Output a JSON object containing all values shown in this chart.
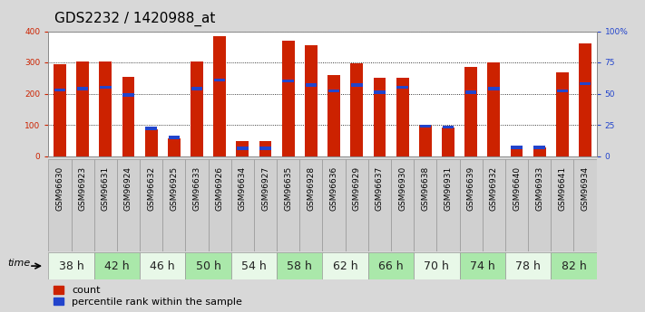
{
  "title": "GDS2232 / 1420988_at",
  "samples": [
    "GSM96630",
    "GSM96923",
    "GSM96631",
    "GSM96924",
    "GSM96632",
    "GSM96925",
    "GSM96633",
    "GSM96926",
    "GSM96634",
    "GSM96927",
    "GSM96635",
    "GSM96928",
    "GSM96636",
    "GSM96929",
    "GSM96637",
    "GSM96930",
    "GSM96638",
    "GSM96931",
    "GSM96639",
    "GSM96932",
    "GSM96640",
    "GSM96933",
    "GSM96641",
    "GSM96934"
  ],
  "count_values": [
    295,
    302,
    302,
    255,
    85,
    57,
    302,
    385,
    47,
    47,
    370,
    355,
    258,
    298,
    250,
    250,
    96,
    92,
    285,
    300,
    28,
    28,
    268,
    362
  ],
  "percentile_values": [
    53,
    54,
    55,
    49,
    22,
    15,
    54,
    61,
    6,
    6,
    60,
    57,
    52,
    57,
    51,
    55,
    24,
    23,
    51,
    54,
    7,
    7,
    52,
    58
  ],
  "time_groups": [
    {
      "label": "38 h",
      "start": 0,
      "end": 2
    },
    {
      "label": "42 h",
      "start": 2,
      "end": 4
    },
    {
      "label": "46 h",
      "start": 4,
      "end": 6
    },
    {
      "label": "50 h",
      "start": 6,
      "end": 8
    },
    {
      "label": "54 h",
      "start": 8,
      "end": 10
    },
    {
      "label": "58 h",
      "start": 10,
      "end": 12
    },
    {
      "label": "62 h",
      "start": 12,
      "end": 14
    },
    {
      "label": "66 h",
      "start": 14,
      "end": 16
    },
    {
      "label": "70 h",
      "start": 16,
      "end": 18
    },
    {
      "label": "74 h",
      "start": 18,
      "end": 20
    },
    {
      "label": "78 h",
      "start": 20,
      "end": 22
    },
    {
      "label": "82 h",
      "start": 22,
      "end": 24
    }
  ],
  "bar_color_red": "#cc2200",
  "bar_color_blue": "#2244cc",
  "ylim_left": [
    0,
    400
  ],
  "ylim_right": [
    0,
    100
  ],
  "yticks_left": [
    0,
    100,
    200,
    300,
    400
  ],
  "yticks_right": [
    0,
    25,
    50,
    75,
    100
  ],
  "ytick_labels_right": [
    "0",
    "25",
    "50",
    "75",
    "100%"
  ],
  "title_fontsize": 11,
  "tick_fontsize": 6.5,
  "sample_fontsize": 6.5,
  "legend_fontsize": 8,
  "time_label_fontsize": 9,
  "background_color": "#d8d8d8",
  "plot_bg": "#ffffff",
  "left_tick_color": "#cc2200",
  "right_tick_color": "#2244cc",
  "sample_box_color": "#d0d0d0",
  "sample_box_edge": "#999999",
  "group_colors": [
    "#e8f8e8",
    "#aae8aa"
  ]
}
